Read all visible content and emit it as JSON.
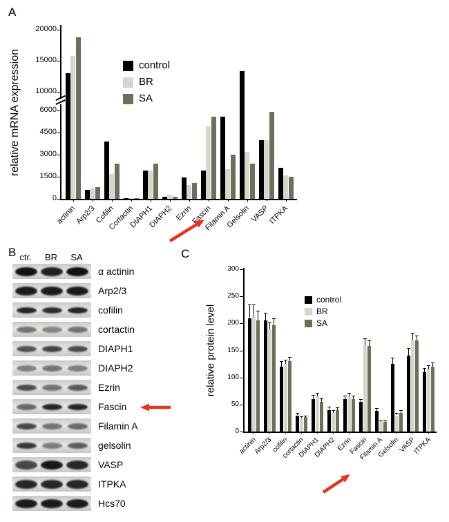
{
  "panels": {
    "a": {
      "letter": "A"
    },
    "b": {
      "letter": "B",
      "lane_labels": [
        "ctr.",
        "BR",
        "SA"
      ],
      "rows": [
        {
          "label": "α actinin",
          "thick": true,
          "bands": [
            0.95,
            0.88,
            0.95
          ]
        },
        {
          "label": "Arp2/3",
          "thick": true,
          "bands": [
            0.9,
            0.9,
            0.9
          ]
        },
        {
          "label": "cofilin",
          "thick": false,
          "bands": [
            0.85,
            0.82,
            0.85
          ]
        },
        {
          "label": "cortactin",
          "thick": false,
          "bands": [
            0.5,
            0.42,
            0.5
          ]
        },
        {
          "label": "DIAPH1",
          "thick": false,
          "bands": [
            0.65,
            0.72,
            0.68
          ]
        },
        {
          "label": "DIAPH2",
          "thick": false,
          "bands": [
            0.45,
            0.5,
            0.45
          ]
        },
        {
          "label": "Ezrin",
          "thick": false,
          "bands": [
            0.68,
            0.5,
            0.62
          ]
        },
        {
          "label": "Fascin",
          "thick": false,
          "bands": [
            0.55,
            0.85,
            0.85
          ],
          "arrow": true
        },
        {
          "label": "Filamin A",
          "thick": false,
          "bands": [
            0.7,
            0.5,
            0.55
          ]
        },
        {
          "label": "gelsolin",
          "thick": false,
          "bands": [
            0.78,
            0.45,
            0.6
          ]
        },
        {
          "label": "VASP",
          "thick": true,
          "bands": [
            0.7,
            0.92,
            0.85
          ]
        },
        {
          "label": "ITPKA",
          "thick": true,
          "bands": [
            0.85,
            0.85,
            0.85
          ]
        },
        {
          "label": "Hcs70",
          "thick": true,
          "bands": [
            0.9,
            0.9,
            0.9
          ]
        }
      ]
    },
    "c": {
      "letter": "C"
    }
  },
  "chart_data": [
    {
      "type": "bar",
      "panel": "A",
      "title": "",
      "xlabel": "",
      "ylabel": "relative mRNA expression",
      "grid": false,
      "legend_position": "upper-left-of-plot",
      "y_axis": {
        "broken": true,
        "lower_ticks": [
          0,
          1500,
          3000,
          4500,
          6000
        ],
        "upper_ticks": [
          10000,
          15000,
          20000
        ]
      },
      "categories": [
        "actinin",
        "Arp2/3",
        "Cofilin",
        "Cortactin",
        "DIAPH1",
        "DIAPH2",
        "Ezrin",
        "Fascin",
        "Filamin A",
        "Gelsolin",
        "VASP",
        "ITPKA"
      ],
      "series": [
        {
          "name": "control",
          "color": "#000000",
          "values": [
            13000,
            600,
            3900,
            60,
            1900,
            150,
            1450,
            1900,
            5600,
            13300,
            4000,
            2100
          ]
        },
        {
          "name": "BR",
          "color": "#d6d6cc",
          "values": [
            15800,
            700,
            1700,
            60,
            1900,
            260,
            950,
            4900,
            2000,
            3200,
            4000,
            1600
          ]
        },
        {
          "name": "SA",
          "color": "#6e6e5a",
          "values": [
            18800,
            780,
            2400,
            60,
            2400,
            160,
            1100,
            5600,
            3000,
            2400,
            5900,
            1500
          ]
        }
      ],
      "arrow_target": "Fascin"
    },
    {
      "type": "bar",
      "panel": "C",
      "title": "",
      "xlabel": "",
      "ylabel": "relative protein level",
      "grid": false,
      "legend_position": "upper-center",
      "ylim": [
        0,
        300
      ],
      "yticks": [
        0,
        50,
        100,
        150,
        200,
        250,
        300
      ],
      "error_bars": true,
      "categories": [
        "actinin",
        "Arp2/3",
        "cofilin",
        "cortactin",
        "DIAPH1",
        "DIAPH2",
        "Ezrin",
        "Fascin",
        "Filamin A",
        "Gelsolin",
        "VASP",
        "ITPKA"
      ],
      "series": [
        {
          "name": "control",
          "color": "#000000",
          "values": [
            210,
            205,
            120,
            30,
            60,
            40,
            60,
            55,
            38,
            125,
            140,
            110
          ],
          "errors": [
            25,
            15,
            10,
            4,
            8,
            6,
            7,
            5,
            5,
            12,
            15,
            8
          ]
        },
        {
          "name": "BR",
          "color": "#d6d6cc",
          "values": [
            215,
            190,
            125,
            25,
            65,
            35,
            65,
            160,
            18,
            30,
            170,
            115
          ],
          "errors": [
            20,
            12,
            8,
            3,
            6,
            5,
            6,
            12,
            3,
            5,
            12,
            8
          ]
        },
        {
          "name": "SA",
          "color": "#6e6e5a",
          "values": [
            205,
            197,
            130,
            27,
            55,
            40,
            60,
            158,
            18,
            35,
            168,
            120
          ],
          "errors": [
            18,
            12,
            8,
            3,
            6,
            5,
            6,
            10,
            3,
            5,
            10,
            8
          ]
        }
      ],
      "arrow_target": "Fascin"
    }
  ],
  "colors": {
    "control": "#000000",
    "br": "#d6d6cc",
    "sa": "#6e6e5a",
    "arrow_red": "#e8321f"
  }
}
